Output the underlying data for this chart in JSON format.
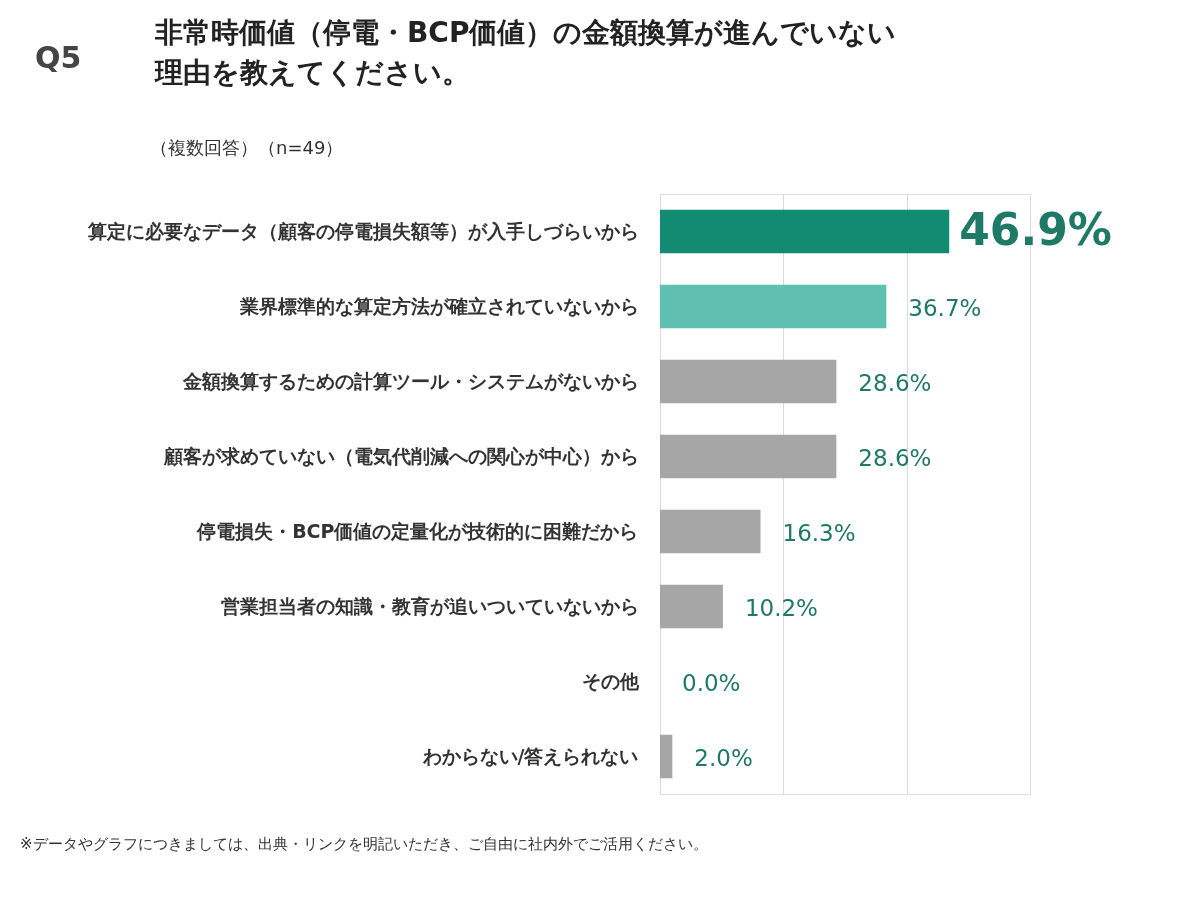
{
  "chart_data": {
    "type": "bar",
    "orientation": "horizontal",
    "title": "非常時価値（停電・BCP価値）の金額換算が進んでいない理由を教えてください。",
    "subtitle": "（複数回答）（n=49）",
    "categories": [
      "算定に必要なデータ（顧客の停電損失額等）が入手しづらいから",
      "業界標準的な算定方法が確立されていないから",
      "金額換算するための計算ツール・システムがないから",
      "顧客が求めていない（電気代削減への関心が中心）から",
      "停電損失・BCP価値の定量化が技術的に困難だから",
      "営業担当者の知識・教育が追いついていないから",
      "その他",
      "わからない/答えられない"
    ],
    "values": [
      46.9,
      36.7,
      28.6,
      28.6,
      16.3,
      10.2,
      0.0,
      2.0
    ],
    "colors": [
      "#138a72",
      "#5fbfb0",
      "#a6a6a6",
      "#a6a6a6",
      "#a6a6a6",
      "#a6a6a6",
      "#a6a6a6",
      "#a6a6a6"
    ],
    "value_labels": [
      "46.9%",
      "36.7%",
      "28.6%",
      "28.6%",
      "16.3%",
      "10.2%",
      "0.0%",
      "2.0%"
    ],
    "xlim": [
      0,
      60
    ],
    "xticks": [
      {
        "value": 0,
        "label": null
      },
      {
        "value": 20,
        "label": null
      },
      {
        "value": 40,
        "label": null
      },
      {
        "value": 60,
        "label": null
      }
    ],
    "grid": "x",
    "tick_labels": "y",
    "annotations": [
      "Q5",
      "※データやグラフにつきましては、出典・リンクを明記いただき、ご自由に社内外でご活用ください。"
    ]
  }
}
